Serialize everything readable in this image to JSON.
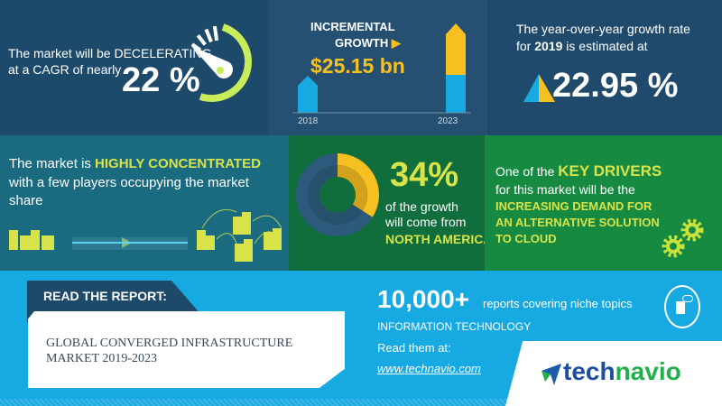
{
  "cagr": {
    "line1": "The market will be DECELERATING",
    "line2": "at a CAGR of nearly",
    "value": "22 %"
  },
  "growth": {
    "title1": "INCREMENTAL",
    "title2": "GROWTH",
    "value": "$25.15 bn",
    "year_start": "2018",
    "year_end": "2023"
  },
  "yoy": {
    "line1": "The year-over-year growth rate",
    "line2_pre": "for",
    "line2_year": "2019",
    "line2_post": "is estimated at",
    "value": "22.95 %"
  },
  "concentration": {
    "pre": "The market is",
    "highlight": "HIGHLY CONCENTRATED",
    "line2": "with a few players occupying the market",
    "line3": "share"
  },
  "region": {
    "value": "34%",
    "share_percent": 34,
    "line1": "of the growth",
    "line2": "will come from",
    "region": "NORTH AMERICA"
  },
  "drivers": {
    "pre": "One of the",
    "highlight": "KEY DRIVERS",
    "line2": "for this market will be the",
    "d1": "INCREASING DEMAND FOR",
    "d2": "AN ALTERNATIVE SOLUTION",
    "d3": "TO CLOUD"
  },
  "report": {
    "label": "READ THE REPORT:",
    "title1": "GLOBAL CONVERGED INFRASTRUCTURE",
    "title2": "MARKET 2019-2023"
  },
  "promo": {
    "count": "10,000+",
    "count_text": "reports covering niche topics",
    "category": "INFORMATION TECHNOLOGY",
    "read": "Read them at:",
    "url": "www.technavio.com"
  },
  "brand": {
    "part1": "tech",
    "part2": "navio"
  },
  "colors": {
    "navy": "#1d4a6b",
    "teal": "#1a6b80",
    "green_dark": "#0f6e3c",
    "green": "#178c42",
    "sky": "#17a9e1",
    "yellow": "#f6c120",
    "lime": "#d8e34a"
  }
}
